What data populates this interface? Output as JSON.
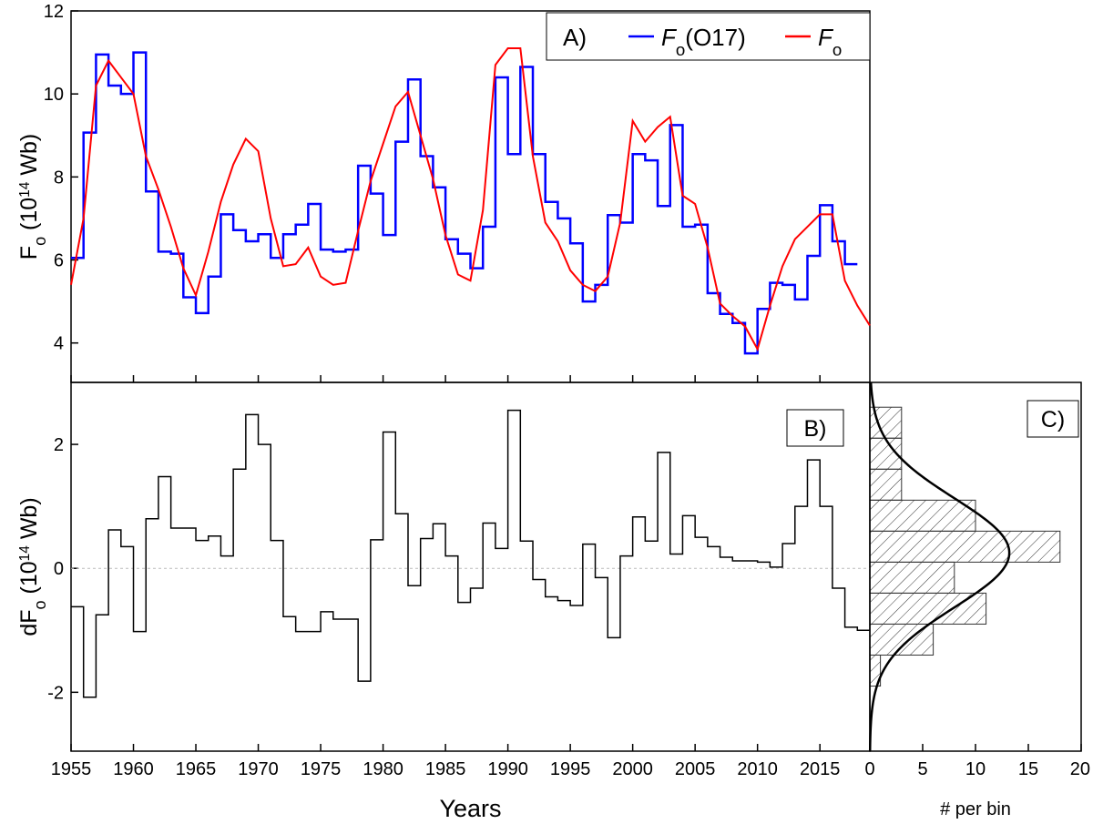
{
  "chart_data": [
    {
      "type": "line",
      "panel": "A)",
      "ylabel": [
        "F",
        "o",
        " (10",
        "14",
        " Wb)"
      ],
      "xlim": [
        1955,
        2019
      ],
      "ylim": [
        3.05,
        12
      ],
      "yticks": [
        4,
        6,
        8,
        10,
        12
      ],
      "legend": "upper right",
      "series": [
        {
          "name": [
            "F",
            "o",
            "(O17)"
          ],
          "color": "#0000ff",
          "step": true,
          "x": [
            1955,
            1956,
            1957,
            1958,
            1959,
            1960,
            1961,
            1962,
            1963,
            1964,
            1965,
            1966,
            1967,
            1968,
            1969,
            1970,
            1971,
            1972,
            1973,
            1974,
            1975,
            1976,
            1977,
            1978,
            1979,
            1980,
            1981,
            1982,
            1983,
            1984,
            1985,
            1986,
            1987,
            1988,
            1989,
            1990,
            1991,
            1992,
            1993,
            1994,
            1995,
            1996,
            1997,
            1998,
            1999,
            2000,
            2001,
            2002,
            2003,
            2004,
            2005,
            2006,
            2007,
            2008,
            2009,
            2010,
            2011,
            2012,
            2013,
            2014,
            2015,
            2016,
            2017
          ],
          "values": [
            6.05,
            9.07,
            10.95,
            10.2,
            10.0,
            11.0,
            7.65,
            6.2,
            6.15,
            5.1,
            4.72,
            5.6,
            7.1,
            6.72,
            6.45,
            6.62,
            6.05,
            6.62,
            6.85,
            7.35,
            6.25,
            6.2,
            6.25,
            8.27,
            7.6,
            6.6,
            8.85,
            10.35,
            8.5,
            7.75,
            6.5,
            6.15,
            5.8,
            6.8,
            10.4,
            8.55,
            10.65,
            8.55,
            7.4,
            7.0,
            6.4,
            5.0,
            5.4,
            7.08,
            6.9,
            8.55,
            8.4,
            7.3,
            9.25,
            6.8,
            6.85,
            5.2,
            4.7,
            4.48,
            3.75,
            4.82,
            5.45,
            5.4,
            5.05,
            6.1,
            7.32,
            6.45,
            5.9
          ]
        },
        {
          "name": [
            "F",
            "o"
          ],
          "color": "#ff0000",
          "step": false,
          "x": [
            1955,
            1956,
            1957,
            1958,
            1959,
            1960,
            1961,
            1962,
            1963,
            1964,
            1965,
            1966,
            1967,
            1968,
            1969,
            1970,
            1971,
            1972,
            1973,
            1974,
            1975,
            1976,
            1977,
            1978,
            1979,
            1980,
            1981,
            1982,
            1983,
            1984,
            1985,
            1986,
            1987,
            1988,
            1989,
            1990,
            1991,
            1992,
            1993,
            1994,
            1995,
            1996,
            1997,
            1998,
            1999,
            2000,
            2001,
            2002,
            2003,
            2004,
            2005,
            2006,
            2007,
            2008,
            2009,
            2010,
            2011,
            2012,
            2013,
            2014,
            2015,
            2016,
            2017,
            2018,
            2019
          ],
          "values": [
            5.4,
            7.0,
            10.2,
            10.8,
            10.4,
            10.0,
            8.5,
            7.7,
            6.8,
            5.8,
            5.15,
            6.2,
            7.4,
            8.3,
            8.92,
            8.62,
            7.0,
            5.85,
            5.9,
            6.3,
            5.6,
            5.4,
            5.45,
            6.7,
            7.9,
            8.8,
            9.7,
            10.05,
            9.0,
            7.95,
            6.6,
            5.65,
            5.5,
            7.2,
            10.7,
            11.1,
            11.1,
            8.5,
            6.9,
            6.45,
            5.75,
            5.4,
            5.25,
            5.6,
            6.9,
            9.35,
            8.85,
            9.2,
            9.45,
            7.55,
            7.35,
            6.3,
            4.95,
            4.65,
            4.4,
            3.85,
            4.9,
            5.85,
            6.5,
            6.8,
            7.1,
            7.1,
            5.5,
            4.9,
            4.42
          ]
        }
      ]
    },
    {
      "type": "step",
      "panel": "B)",
      "ylabel": [
        "dF",
        "o",
        " (10",
        "14",
        " Wb)"
      ],
      "xlabel": "Years",
      "xlim": [
        1955,
        2019
      ],
      "xticks": [
        1955,
        1960,
        1965,
        1970,
        1975,
        1980,
        1985,
        1990,
        1995,
        2000,
        2005,
        2010,
        2015
      ],
      "ylim": [
        -2.95,
        3.0
      ],
      "yticks": [
        -2,
        0,
        2
      ],
      "hline": 0,
      "color": "#000000",
      "x": [
        1955,
        1956,
        1957,
        1958,
        1959,
        1960,
        1961,
        1962,
        1963,
        1964,
        1965,
        1966,
        1967,
        1968,
        1969,
        1970,
        1971,
        1972,
        1973,
        1974,
        1975,
        1976,
        1977,
        1978,
        1979,
        1980,
        1981,
        1982,
        1983,
        1984,
        1985,
        1986,
        1987,
        1988,
        1989,
        1990,
        1991,
        1992,
        1993,
        1994,
        1995,
        1996,
        1997,
        1998,
        1999,
        2000,
        2001,
        2002,
        2003,
        2004,
        2005,
        2006,
        2007,
        2008,
        2009,
        2010,
        2011,
        2012,
        2013,
        2014,
        2015,
        2016,
        2017,
        2018
      ],
      "values": [
        -0.62,
        -2.08,
        -0.75,
        0.62,
        0.35,
        -1.02,
        0.8,
        1.48,
        0.65,
        0.65,
        0.45,
        0.52,
        0.2,
        1.6,
        2.48,
        2.0,
        0.45,
        -0.78,
        -1.02,
        -1.02,
        -0.7,
        -0.82,
        -0.82,
        -1.82,
        0.46,
        2.2,
        0.88,
        -0.28,
        0.48,
        0.72,
        0.2,
        -0.55,
        -0.32,
        0.73,
        0.32,
        2.55,
        0.44,
        -0.18,
        -0.46,
        -0.52,
        -0.6,
        0.39,
        -0.15,
        -1.12,
        0.2,
        0.83,
        0.44,
        1.87,
        0.23,
        0.85,
        0.5,
        0.35,
        0.18,
        0.12,
        0.12,
        0.1,
        0.02,
        0.4,
        1.0,
        1.75,
        1.0,
        -0.32,
        -0.95,
        -1.0
      ]
    },
    {
      "type": "histogram",
      "panel": "C)",
      "xlabel": "# per bin",
      "orientation": "horizontal",
      "xlim": [
        0,
        20
      ],
      "xticks": [
        0,
        5,
        10,
        15,
        20
      ],
      "ylim": [
        -2.95,
        3.0
      ],
      "bins": [
        -1.9,
        -1.4,
        -0.9,
        -0.4,
        0.1,
        0.6,
        1.1,
        1.6,
        2.1,
        2.6
      ],
      "counts": [
        1,
        6,
        11,
        8,
        18,
        10,
        3,
        3,
        3
      ],
      "fit": {
        "peak": 13.2,
        "center": 0.25,
        "width": 0.88
      }
    }
  ]
}
